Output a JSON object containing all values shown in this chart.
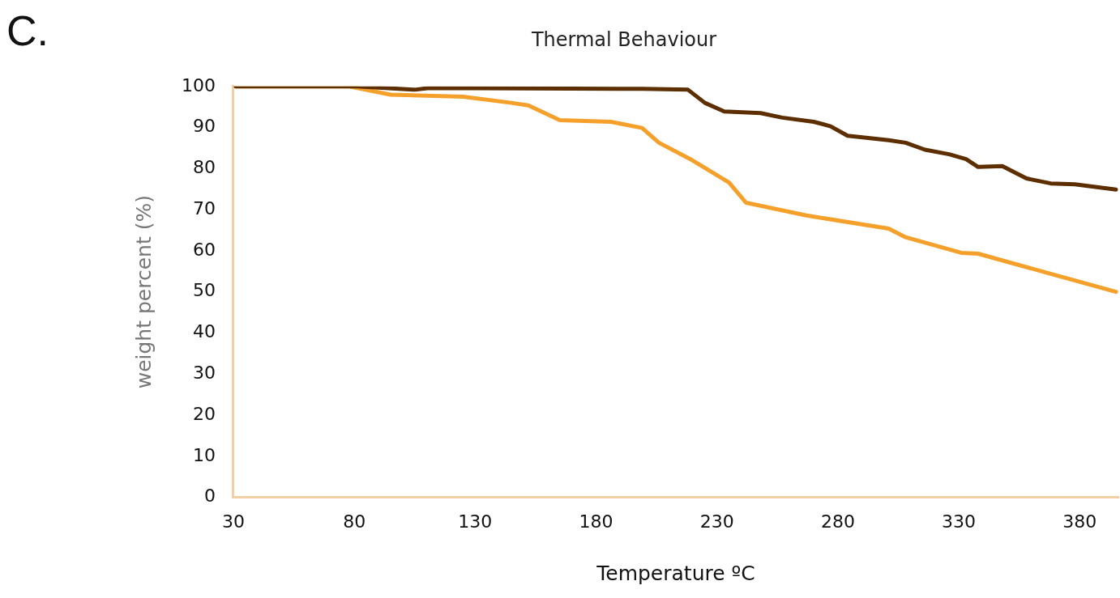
{
  "chart_data": {
    "type": "line",
    "title": "Thermal Behaviour",
    "xlabel": "Temperature ºC",
    "ylabel": "weight percent (%)",
    "annotations": [
      "C."
    ],
    "xlim": [
      30,
      396
    ],
    "xticks": [
      30,
      80,
      130,
      180,
      230,
      280,
      330,
      380
    ],
    "ylim": [
      0,
      100
    ],
    "yticks": [
      0,
      10,
      20,
      30,
      40,
      50,
      60,
      70,
      80,
      90,
      100
    ],
    "grid": false,
    "legend": false,
    "marker": "none",
    "line_style": "solid",
    "series": [
      {
        "color": "#5c2e00",
        "x": [
          31,
          81,
          105,
          111,
          199,
          218,
          225,
          233,
          248,
          257,
          270,
          277,
          284,
          301,
          308,
          316,
          326,
          333,
          338,
          348,
          358,
          368,
          378,
          395
        ],
        "values": [
          100,
          100,
          99.2,
          99.6,
          99.4,
          99.2,
          96,
          93.9,
          93.5,
          92.4,
          91.4,
          90.3,
          88,
          86.9,
          86.3,
          84.6,
          83.5,
          82.3,
          80.4,
          80.6,
          77.6,
          76.4,
          76.2,
          74.9
        ]
      },
      {
        "color": "#f5a02a",
        "x": [
          31,
          78,
          95,
          125,
          145,
          152,
          165,
          186,
          199,
          206,
          219,
          235,
          242,
          267,
          301,
          308,
          331,
          338,
          368,
          395
        ],
        "values": [
          100,
          100,
          98,
          97.5,
          96,
          95.4,
          91.8,
          91.4,
          89.9,
          86.3,
          82.3,
          76.6,
          71.7,
          68.6,
          65.4,
          63.3,
          59.5,
          59.3,
          54.4,
          50
        ]
      }
    ]
  }
}
